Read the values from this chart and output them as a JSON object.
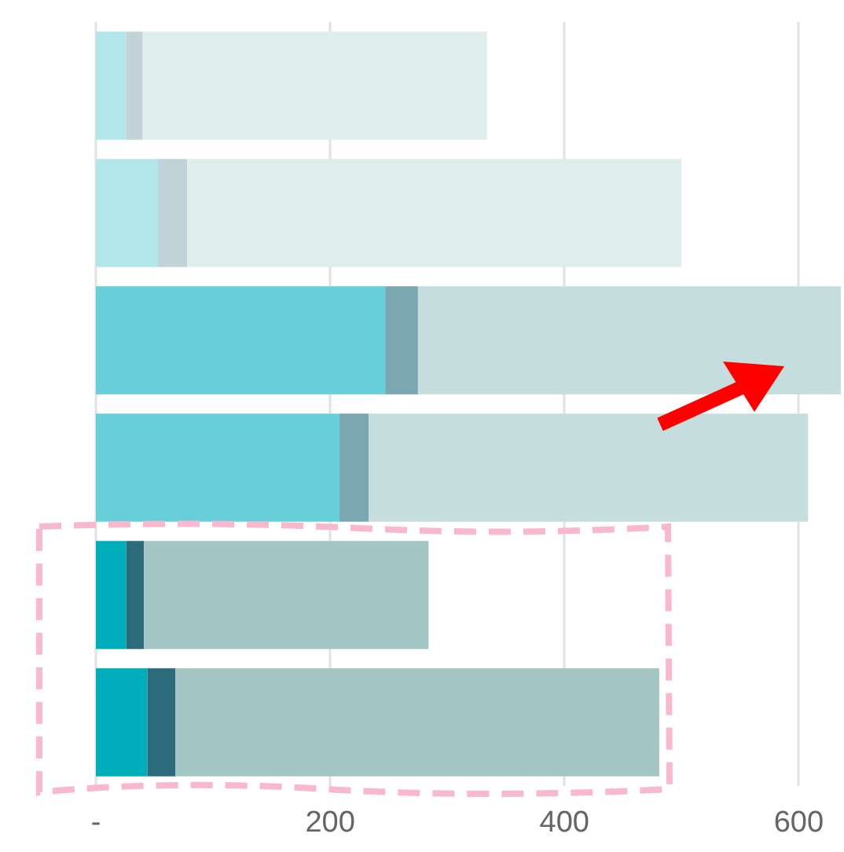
{
  "chart_data": {
    "type": "bar",
    "orientation": "horizontal",
    "stacked": true,
    "categories": [
      null,
      null,
      null,
      null,
      null,
      null
    ],
    "series": [
      {
        "colors": [
          "#b2e6ea",
          "#b2e6ea",
          "#66cfd8",
          "#66cfd8",
          "#00adbb",
          "#00adbb"
        ],
        "values": [
          26,
          53,
          247,
          208,
          26,
          44
        ]
      },
      {
        "colors": [
          "#c2d3d7",
          "#c2d3d7",
          "#7aa7b2",
          "#7aa7b2",
          "#2b6b7b",
          "#2b6b7b"
        ],
        "values": [
          14,
          25,
          28,
          25,
          15,
          24
        ]
      },
      {
        "colors": [
          "#e0eded",
          "#e0eded",
          "#c6dddd",
          "#c6dddd",
          "#a3c6c4",
          "#a3c6c4"
        ],
        "values": [
          294,
          422,
          361,
          375,
          243,
          413
        ]
      }
    ],
    "xlim": [
      0,
      636
    ],
    "xticks": [
      {
        "value": 0,
        "label": "-"
      },
      200,
      400,
      600
    ],
    "grid": "x"
  }
}
